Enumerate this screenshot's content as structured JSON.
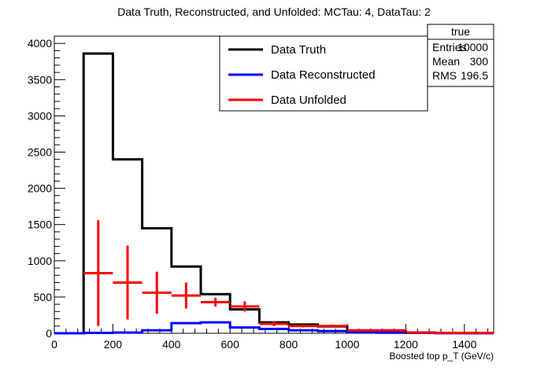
{
  "chart_data": {
    "type": "histogram",
    "title": "Data Truth, Reconstructed, and Unfolded: MCTau: 4, DataTau: 2",
    "xlabel": "Boosted top p_T (GeV/c)",
    "ylabel": "",
    "xlim": [
      0,
      1500
    ],
    "ylim": [
      0,
      4100
    ],
    "x_ticks": [
      0,
      200,
      400,
      600,
      800,
      1000,
      1200,
      1400
    ],
    "y_ticks": [
      0,
      500,
      1000,
      1500,
      2000,
      2500,
      3000,
      3500,
      4000
    ],
    "bin_edges": [
      0,
      100,
      200,
      300,
      400,
      500,
      600,
      700,
      800,
      900,
      1000,
      1100,
      1200,
      1300,
      1400,
      1500
    ],
    "series": [
      {
        "name": "Data Truth",
        "style": "step",
        "color": "#000000",
        "values": [
          0,
          3860,
          2400,
          1450,
          920,
          540,
          330,
          150,
          120,
          95,
          35,
          25,
          10,
          5,
          2
        ]
      },
      {
        "name": "Data Reconstructed",
        "style": "step",
        "color": "#0000ff",
        "values": [
          0,
          5,
          10,
          40,
          140,
          150,
          80,
          60,
          40,
          30,
          15,
          8,
          5,
          2,
          1
        ]
      },
      {
        "name": "Data Unfolded",
        "style": "errorbar",
        "color": "#ff0000",
        "values": [
          0,
          830,
          700,
          560,
          520,
          430,
          370,
          130,
          100,
          100,
          40,
          40,
          10,
          5,
          5
        ],
        "errors": [
          0,
          730,
          510,
          290,
          180,
          60,
          70,
          30,
          20,
          20,
          10,
          10,
          5,
          3,
          3
        ]
      }
    ],
    "stats_box": {
      "title": "true",
      "rows": [
        {
          "label": "Entries",
          "value": "10000"
        },
        {
          "label": "Mean",
          "value": "300"
        },
        {
          "label": "RMS",
          "value": "196.5"
        }
      ]
    },
    "legend_placement": "top-center",
    "stats_placement": "top-right",
    "grid": false
  }
}
